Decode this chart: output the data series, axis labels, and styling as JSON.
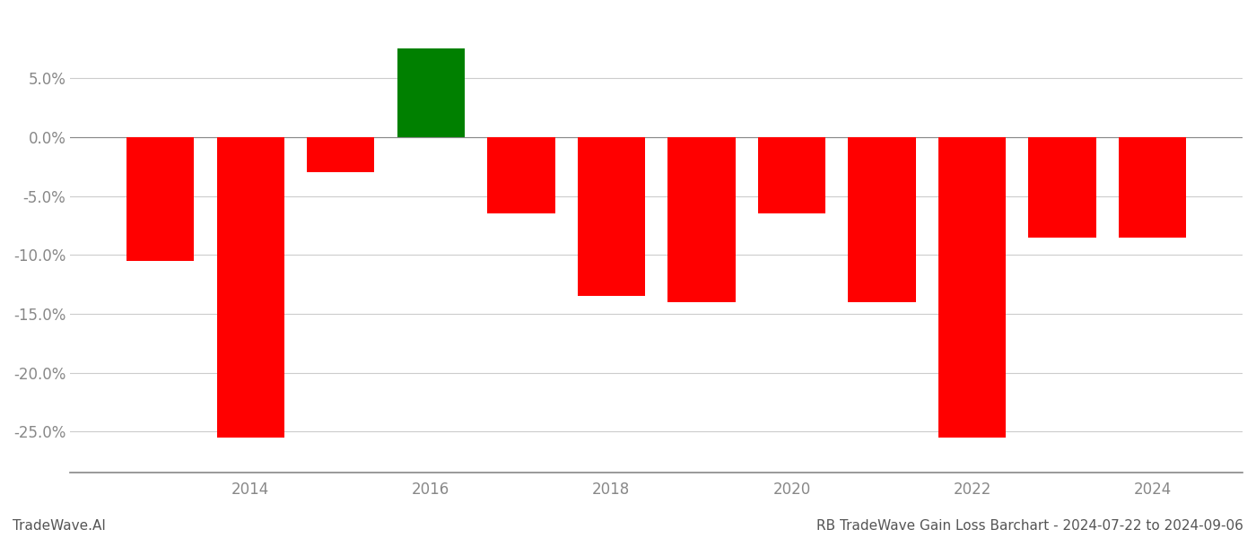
{
  "years": [
    2013,
    2014,
    2015,
    2016,
    2017,
    2018,
    2019,
    2020,
    2021,
    2022,
    2023,
    2024
  ],
  "values": [
    -0.105,
    -0.255,
    -0.03,
    0.075,
    -0.065,
    -0.135,
    -0.14,
    -0.065,
    -0.14,
    -0.255,
    -0.085,
    -0.085
  ],
  "bar_colors": [
    "#ff0000",
    "#ff0000",
    "#ff0000",
    "#008000",
    "#ff0000",
    "#ff0000",
    "#ff0000",
    "#ff0000",
    "#ff0000",
    "#ff0000",
    "#ff0000",
    "#ff0000"
  ],
  "ylim": [
    -0.285,
    0.105
  ],
  "yticks": [
    -0.25,
    -0.2,
    -0.15,
    -0.1,
    -0.05,
    0.0,
    0.05
  ],
  "xticks": [
    2014,
    2016,
    2018,
    2020,
    2022,
    2024
  ],
  "footnote_left": "TradeWave.AI",
  "footnote_right": "RB TradeWave Gain Loss Barchart - 2024-07-22 to 2024-09-06",
  "background_color": "#ffffff",
  "grid_color": "#cccccc",
  "bar_width": 0.75,
  "spine_color": "#888888",
  "tick_color": "#888888",
  "label_fontsize": 12
}
